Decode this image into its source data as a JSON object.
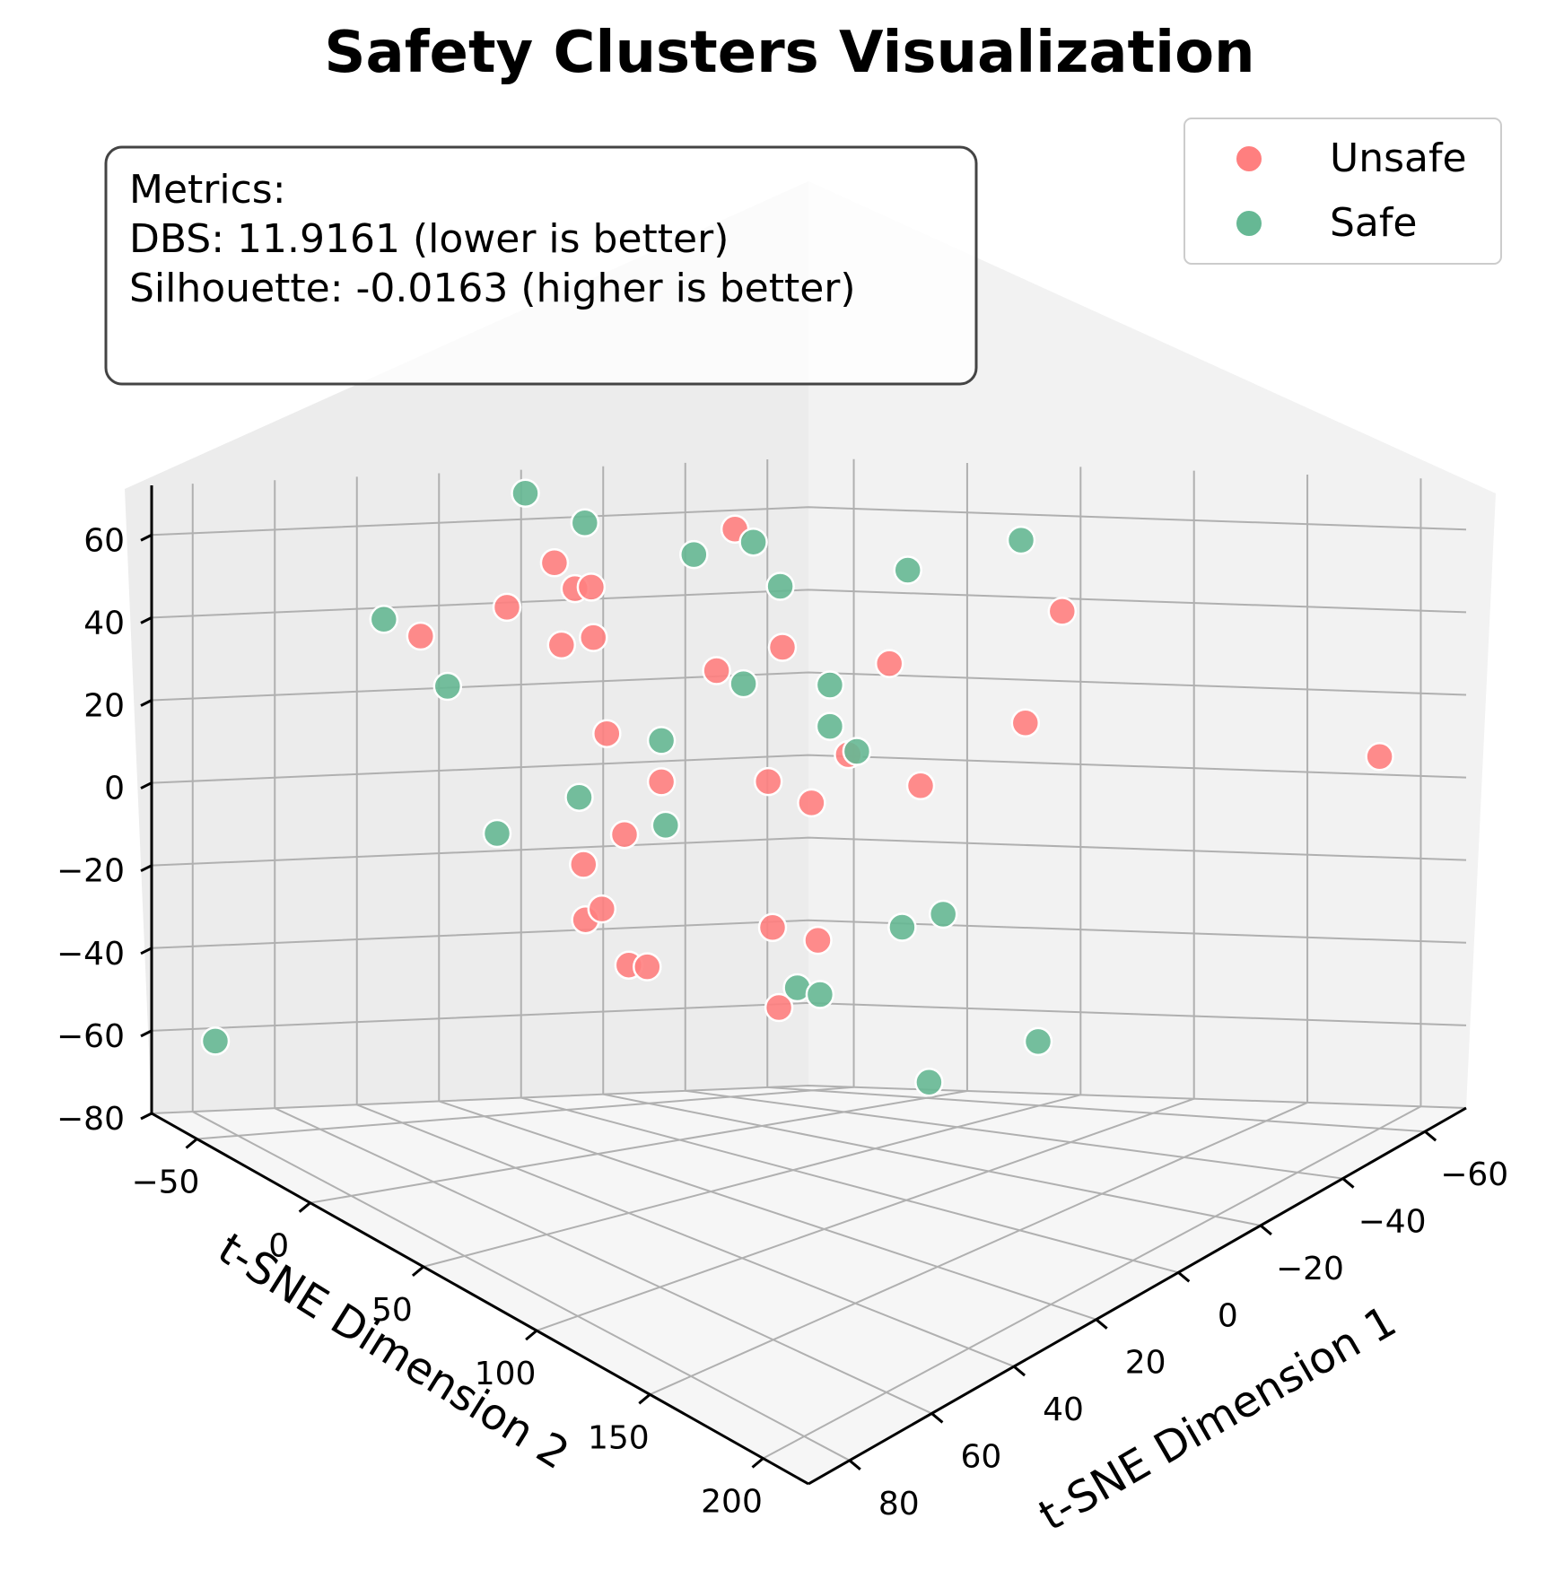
{
  "chart_data": {
    "type": "scatter",
    "projection": "3d",
    "title": "Safety Clusters Visualization",
    "xlabel": "t-SNE Dimension 1",
    "ylabel": "t-SNE Dimension 2",
    "zlabel": "",
    "xlim": [
      -70,
      90
    ],
    "ylim": [
      -70,
      220
    ],
    "zlim": [
      -80,
      72
    ],
    "x_ticks": [
      "−60",
      "−40",
      "−20",
      "0",
      "20",
      "40",
      "60",
      "80"
    ],
    "y_ticks": [
      "−50",
      "0",
      "50",
      "100",
      "150",
      "200"
    ],
    "z_ticks": [
      "−80",
      "−60",
      "−40",
      "−20",
      "0",
      "20",
      "40",
      "60"
    ],
    "grid": true,
    "legend_position": "top-right",
    "series": [
      {
        "name": "Unsafe",
        "color": "#ff7f7f",
        "points": [
          {
            "x": 30,
            "y": -60,
            "z": 35
          },
          {
            "x": 20,
            "y": -40,
            "z": 45
          },
          {
            "x": 10,
            "y": -20,
            "z": 40
          },
          {
            "x": 20,
            "y": -10,
            "z": 55
          },
          {
            "x": 25,
            "y": -10,
            "z": 62
          },
          {
            "x": 15,
            "y": -25,
            "z": 38
          },
          {
            "x": 5,
            "y": -30,
            "z": 50
          },
          {
            "x": -20,
            "y": -20,
            "z": 28
          },
          {
            "x": -25,
            "y": 0,
            "z": 35
          },
          {
            "x": -30,
            "y": -30,
            "z": 60
          },
          {
            "x": 15,
            "y": -5,
            "z": 20
          },
          {
            "x": 10,
            "y": 10,
            "z": 10
          },
          {
            "x": 30,
            "y": 30,
            "z": 5
          },
          {
            "x": 40,
            "y": 30,
            "z": 0
          },
          {
            "x": 45,
            "y": 40,
            "z": -10
          },
          {
            "x": 40,
            "y": 50,
            "z": -20
          },
          {
            "x": 30,
            "y": 20,
            "z": -15
          },
          {
            "x": 30,
            "y": 40,
            "z": -25
          },
          {
            "x": 20,
            "y": 80,
            "z": -30
          },
          {
            "x": 5,
            "y": 70,
            "z": -20
          },
          {
            "x": -20,
            "y": 70,
            "z": 10
          },
          {
            "x": -30,
            "y": 20,
            "z": 10
          },
          {
            "x": -40,
            "y": 80,
            "z": 20
          },
          {
            "x": -60,
            "y": 60,
            "z": 40
          },
          {
            "x": -40,
            "y": 20,
            "z": 30
          },
          {
            "x": 5,
            "y": 50,
            "z": -20
          },
          {
            "x": -5,
            "y": 30,
            "z": 10
          },
          {
            "x": -10,
            "y": 40,
            "z": 5
          },
          {
            "x": -60,
            "y": 200,
            "z": 10
          }
        ]
      },
      {
        "name": "Safe",
        "color": "#66b894",
        "points": [
          {
            "x": 10,
            "y": -50,
            "z": 70
          },
          {
            "x": -10,
            "y": -60,
            "z": 60
          },
          {
            "x": -20,
            "y": -30,
            "z": 55
          },
          {
            "x": 50,
            "y": -40,
            "z": 45
          },
          {
            "x": 40,
            "y": -30,
            "z": 30
          },
          {
            "x": -30,
            "y": -10,
            "z": 48
          },
          {
            "x": -40,
            "y": -40,
            "z": 55
          },
          {
            "x": -50,
            "y": 10,
            "z": 50
          },
          {
            "x": -50,
            "y": 60,
            "z": 60
          },
          {
            "x": -20,
            "y": 30,
            "z": 30
          },
          {
            "x": 10,
            "y": 10,
            "z": 20
          },
          {
            "x": -10,
            "y": 10,
            "z": 30
          },
          {
            "x": -20,
            "y": 30,
            "z": 20
          },
          {
            "x": -10,
            "y": 60,
            "z": 20
          },
          {
            "x": 30,
            "y": 10,
            "z": 10
          },
          {
            "x": 50,
            "y": 10,
            "z": 5
          },
          {
            "x": 20,
            "y": 30,
            "z": 5
          },
          {
            "x": -10,
            "y": 80,
            "z": -20
          },
          {
            "x": -20,
            "y": 80,
            "z": -20
          },
          {
            "x": 10,
            "y": 70,
            "z": -30
          },
          {
            "x": 10,
            "y": 80,
            "z": -30
          },
          {
            "x": 0,
            "y": 110,
            "z": -50
          },
          {
            "x": -10,
            "y": 140,
            "z": -40
          },
          {
            "x": 80,
            "y": -60,
            "z": -60
          }
        ]
      }
    ],
    "annotation": {
      "lines": [
        "Metrics:",
        "DBS: 11.9161 (lower is better)",
        "Silhouette: -0.0163 (higher is better)"
      ]
    }
  }
}
